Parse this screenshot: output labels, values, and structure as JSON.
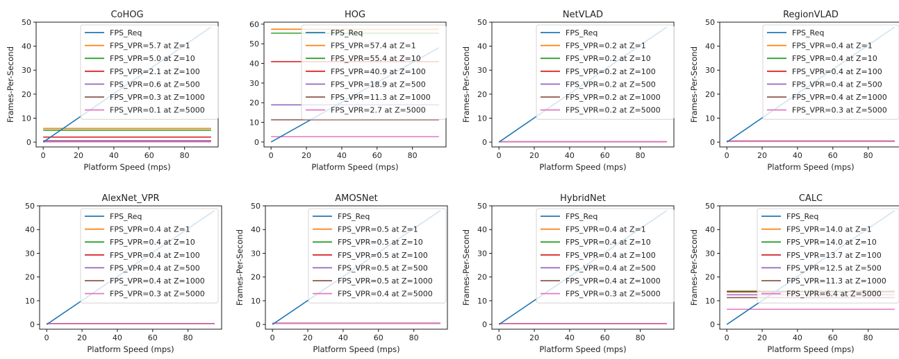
{
  "chart_data": [
    {
      "type": "line",
      "title": "CoHOG",
      "xlabel": "Platform Speed (mps)",
      "ylabel": "Frames-Per-Second",
      "xlim": [
        -4,
        99
      ],
      "ylim": [
        -2,
        50
      ],
      "xticks": [
        0,
        20,
        40,
        60,
        80
      ],
      "yticks": [
        0,
        10,
        20,
        30,
        40,
        50
      ],
      "legend_placement": "upper-right",
      "req": {
        "name": "FPS_Req",
        "x": [
          0,
          95
        ],
        "y": [
          0,
          48
        ]
      },
      "series": [
        {
          "name": "FPS_VPR=5.7 at Z=1",
          "value": 5.7
        },
        {
          "name": "FPS_VPR=5.0 at Z=10",
          "value": 5.0
        },
        {
          "name": "FPS_VPR=2.1 at Z=100",
          "value": 2.1
        },
        {
          "name": "FPS_VPR=0.6 at Z=500",
          "value": 0.6
        },
        {
          "name": "FPS_VPR=0.3 at Z=1000",
          "value": 0.3
        },
        {
          "name": "FPS_VPR=0.1 at Z=5000",
          "value": 0.1
        }
      ]
    },
    {
      "type": "line",
      "title": "HOG",
      "xlabel": "Platform Speed (mps)",
      "ylabel": "",
      "xlim": [
        -4,
        99
      ],
      "ylim": [
        -2.5,
        61
      ],
      "xticks": [
        0,
        20,
        40,
        60,
        80
      ],
      "yticks": [
        0,
        10,
        20,
        30,
        40,
        50,
        60
      ],
      "legend_placement": "upper-right",
      "req": {
        "name": "FPS_Req",
        "x": [
          0,
          95
        ],
        "y": [
          0,
          48
        ]
      },
      "series": [
        {
          "name": "FPS_VPR=57.4 at Z=1",
          "value": 57.4
        },
        {
          "name": "FPS_VPR=55.4 at Z=10",
          "value": 55.4
        },
        {
          "name": "FPS_VPR=40.9 at Z=100",
          "value": 40.9
        },
        {
          "name": "FPS_VPR=18.9 at Z=500",
          "value": 18.9
        },
        {
          "name": "FPS_VPR=11.3 at Z=1000",
          "value": 11.3
        },
        {
          "name": "FPS_VPR=2.7 at Z=5000",
          "value": 2.7
        }
      ]
    },
    {
      "type": "line",
      "title": "NetVLAD",
      "xlabel": "Platform Speed (mps)",
      "ylabel": "Frames-Per-Second",
      "xlim": [
        -4,
        99
      ],
      "ylim": [
        -2,
        50
      ],
      "xticks": [
        0,
        20,
        40,
        60,
        80
      ],
      "yticks": [
        0,
        10,
        20,
        30,
        40,
        50
      ],
      "legend_placement": "upper-right",
      "req": {
        "name": "FPS_Req",
        "x": [
          0,
          95
        ],
        "y": [
          0,
          48
        ]
      },
      "series": [
        {
          "name": "FPS_VPR=0.2 at Z=1",
          "value": 0.2
        },
        {
          "name": "FPS_VPR=0.2 at Z=10",
          "value": 0.2
        },
        {
          "name": "FPS_VPR=0.2 at Z=100",
          "value": 0.2
        },
        {
          "name": "FPS_VPR=0.2 at Z=500",
          "value": 0.2
        },
        {
          "name": "FPS_VPR=0.2 at Z=1000",
          "value": 0.2
        },
        {
          "name": "FPS_VPR=0.2 at Z=5000",
          "value": 0.2
        }
      ]
    },
    {
      "type": "line",
      "title": "RegionVLAD",
      "xlabel": "Platform Speed (mps)",
      "ylabel": "Frames-Per-Second",
      "xlim": [
        -4,
        99
      ],
      "ylim": [
        -2,
        50
      ],
      "xticks": [
        0,
        20,
        40,
        60,
        80
      ],
      "yticks": [
        0,
        10,
        20,
        30,
        40,
        50
      ],
      "legend_placement": "upper-right",
      "req": {
        "name": "FPS_Req",
        "x": [
          0,
          95
        ],
        "y": [
          0,
          48
        ]
      },
      "series": [
        {
          "name": "FPS_VPR=0.4 at Z=1",
          "value": 0.4
        },
        {
          "name": "FPS_VPR=0.4 at Z=10",
          "value": 0.4
        },
        {
          "name": "FPS_VPR=0.4 at Z=100",
          "value": 0.4
        },
        {
          "name": "FPS_VPR=0.4 at Z=500",
          "value": 0.4
        },
        {
          "name": "FPS_VPR=0.4 at Z=1000",
          "value": 0.4
        },
        {
          "name": "FPS_VPR=0.3 at Z=5000",
          "value": 0.3
        }
      ]
    },
    {
      "type": "line",
      "title": "AlexNet_VPR",
      "xlabel": "Platform Speed (mps)",
      "ylabel": "",
      "xlim": [
        -4,
        99
      ],
      "ylim": [
        -2,
        50
      ],
      "xticks": [
        0,
        20,
        40,
        60,
        80
      ],
      "yticks": [
        0,
        10,
        20,
        30,
        40,
        50
      ],
      "legend_placement": "upper-right",
      "req": {
        "name": "FPS_Req",
        "x": [
          0,
          95
        ],
        "y": [
          0,
          48
        ]
      },
      "series": [
        {
          "name": "FPS_VPR=0.4 at Z=1",
          "value": 0.4
        },
        {
          "name": "FPS_VPR=0.4 at Z=10",
          "value": 0.4
        },
        {
          "name": "FPS_VPR=0.4 at Z=100",
          "value": 0.4
        },
        {
          "name": "FPS_VPR=0.4 at Z=500",
          "value": 0.4
        },
        {
          "name": "FPS_VPR=0.4 at Z=1000",
          "value": 0.4
        },
        {
          "name": "FPS_VPR=0.3 at Z=5000",
          "value": 0.3
        }
      ]
    },
    {
      "type": "line",
      "title": "AMOSNet",
      "xlabel": "Platform Speed (mps)",
      "ylabel": "Frames-Per-Second",
      "xlim": [
        -4,
        99
      ],
      "ylim": [
        -2,
        50
      ],
      "xticks": [
        0,
        20,
        40,
        60,
        80
      ],
      "yticks": [
        0,
        10,
        20,
        30,
        40,
        50
      ],
      "legend_placement": "upper-right",
      "req": {
        "name": "FPS_Req",
        "x": [
          0,
          95
        ],
        "y": [
          0,
          48
        ]
      },
      "series": [
        {
          "name": "FPS_VPR=0.5 at Z=1",
          "value": 0.5
        },
        {
          "name": "FPS_VPR=0.5 at Z=10",
          "value": 0.5
        },
        {
          "name": "FPS_VPR=0.5 at Z=100",
          "value": 0.5
        },
        {
          "name": "FPS_VPR=0.5 at Z=500",
          "value": 0.5
        },
        {
          "name": "FPS_VPR=0.5 at Z=1000",
          "value": 0.5
        },
        {
          "name": "FPS_VPR=0.4 at Z=5000",
          "value": 0.4
        }
      ]
    },
    {
      "type": "line",
      "title": "HybridNet",
      "xlabel": "Platform Speed (mps)",
      "ylabel": "Frames-Per-Second",
      "xlim": [
        -4,
        99
      ],
      "ylim": [
        -2,
        50
      ],
      "xticks": [
        0,
        20,
        40,
        60,
        80
      ],
      "yticks": [
        0,
        10,
        20,
        30,
        40,
        50
      ],
      "legend_placement": "upper-right",
      "req": {
        "name": "FPS_Req",
        "x": [
          0,
          95
        ],
        "y": [
          0,
          48
        ]
      },
      "series": [
        {
          "name": "FPS_VPR=0.4 at Z=1",
          "value": 0.4
        },
        {
          "name": "FPS_VPR=0.4 at Z=10",
          "value": 0.4
        },
        {
          "name": "FPS_VPR=0.4 at Z=100",
          "value": 0.4
        },
        {
          "name": "FPS_VPR=0.4 at Z=500",
          "value": 0.4
        },
        {
          "name": "FPS_VPR=0.4 at Z=1000",
          "value": 0.4
        },
        {
          "name": "FPS_VPR=0.3 at Z=5000",
          "value": 0.3
        }
      ]
    },
    {
      "type": "line",
      "title": "CALC",
      "xlabel": "Platform Speed (mps)",
      "ylabel": "Frames-Per-Second",
      "xlim": [
        -4,
        99
      ],
      "ylim": [
        -2,
        50
      ],
      "xticks": [
        0,
        20,
        40,
        60,
        80
      ],
      "yticks": [
        0,
        10,
        20,
        30,
        40,
        50
      ],
      "legend_placement": "upper-right",
      "req": {
        "name": "FPS_Req",
        "x": [
          0,
          95
        ],
        "y": [
          0,
          48
        ]
      },
      "series": [
        {
          "name": "FPS_VPR=14.0 at Z=1",
          "value": 14.0
        },
        {
          "name": "FPS_VPR=14.0 at Z=10",
          "value": 14.0
        },
        {
          "name": "FPS_VPR=13.7 at Z=100",
          "value": 13.7
        },
        {
          "name": "FPS_VPR=12.5 at Z=500",
          "value": 12.5
        },
        {
          "name": "FPS_VPR=11.3 at Z=1000",
          "value": 11.3
        },
        {
          "name": "FPS_VPR=6.4 at Z=5000",
          "value": 6.4
        }
      ]
    }
  ],
  "colors": {
    "req": "#1f77b4",
    "series": [
      "#ff7f0e",
      "#2ca02c",
      "#d62728",
      "#9467bd",
      "#8c564b",
      "#e377c2"
    ]
  }
}
